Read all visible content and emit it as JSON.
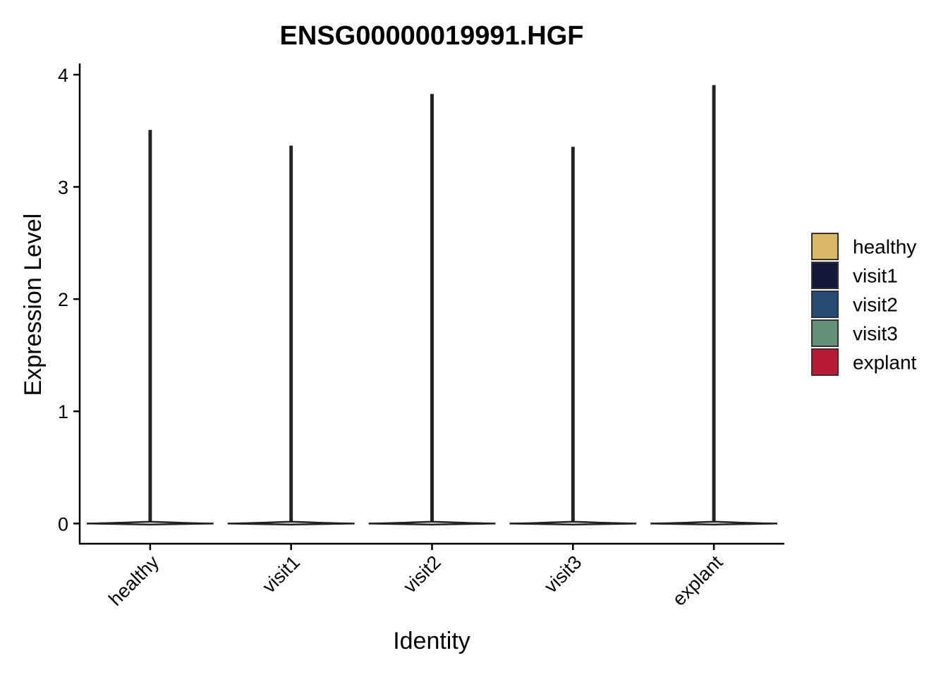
{
  "chart_data": {
    "type": "violin",
    "title": "ENSG00000019991.HGF",
    "xlabel": "Identity",
    "ylabel": "Expression Level",
    "categories": [
      "healthy",
      "visit1",
      "visit2",
      "visit3",
      "explant"
    ],
    "max_values": [
      3.5,
      3.36,
      3.82,
      3.35,
      3.9
    ],
    "ylim": [
      -0.18,
      4.1
    ],
    "yticks": [
      "0",
      "1",
      "2",
      "3",
      "4"
    ],
    "grid": false,
    "legend": {
      "placement": "right",
      "entries": [
        {
          "label": "healthy",
          "color": "#D9B86A"
        },
        {
          "label": "visit1",
          "color": "#14183A"
        },
        {
          "label": "visit2",
          "color": "#264B73"
        },
        {
          "label": "visit3",
          "color": "#648F78"
        },
        {
          "label": "explant",
          "color": "#B71C37"
        }
      ]
    }
  }
}
